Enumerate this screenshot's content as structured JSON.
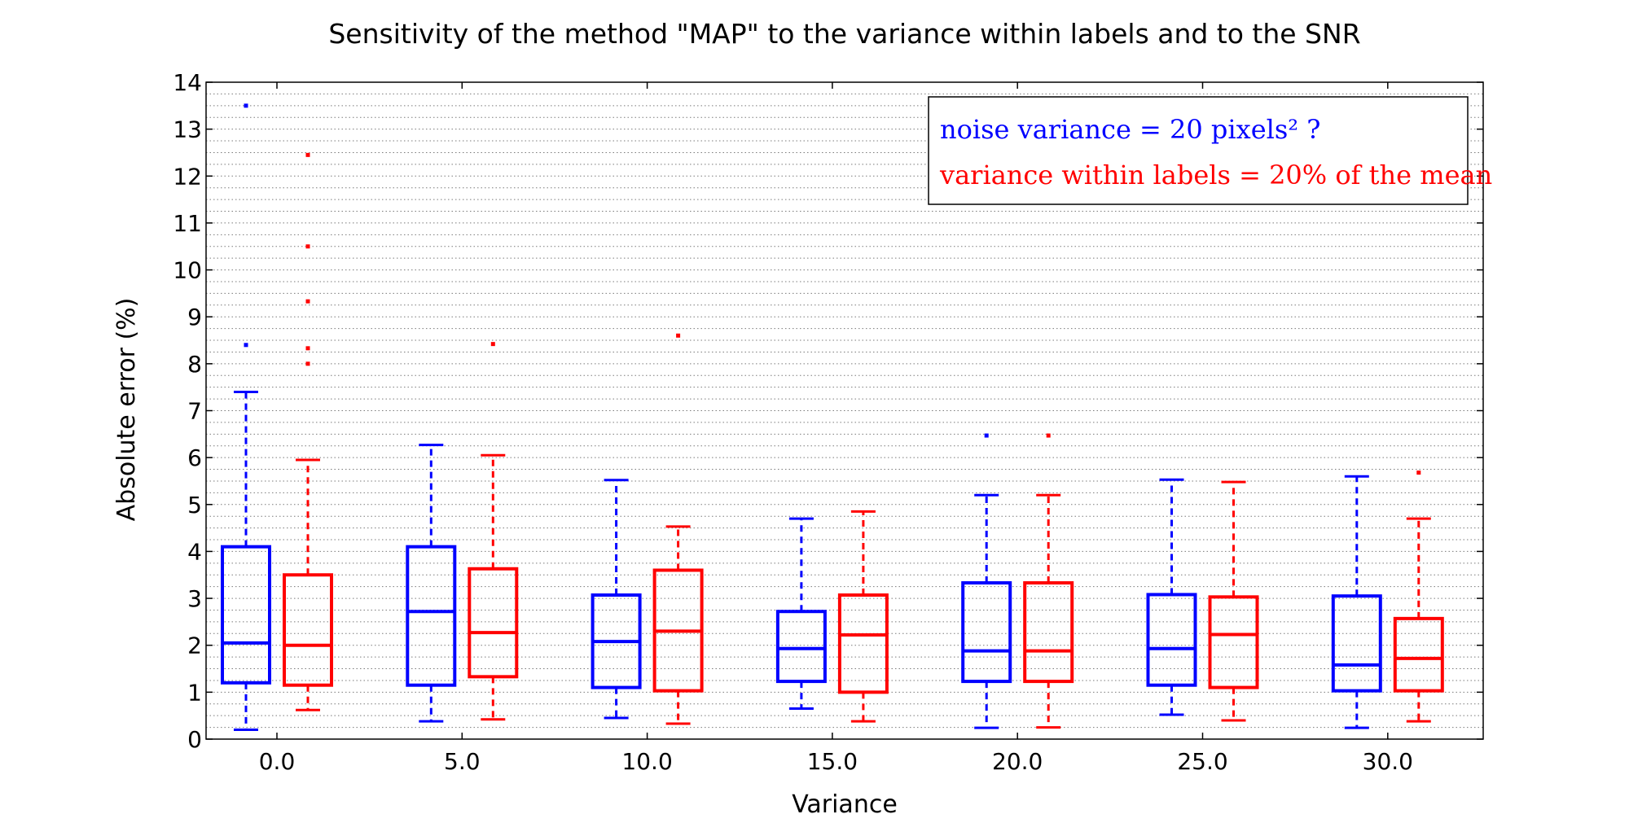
{
  "chart_data": {
    "type": "boxplot",
    "title": "Sensitivity of the method \"MAP\" to the variance within labels and to the SNR",
    "xlabel": "Variance",
    "ylabel": "Absolute error (%)",
    "ylim": [
      0,
      14
    ],
    "y_ticks": [
      "0",
      "1",
      "2",
      "3",
      "4",
      "5",
      "6",
      "7",
      "8",
      "9",
      "10",
      "11",
      "12",
      "13",
      "14"
    ],
    "grid": "horizontal-dotted",
    "categories": [
      "0.0",
      "5.0",
      "10.0",
      "15.0",
      "20.0",
      "25.0",
      "30.0"
    ],
    "legend": {
      "placement": "top-right",
      "entries": [
        {
          "text": "noise variance = 20 pixels² ?",
          "color": "#0000ff"
        },
        {
          "text": "variance within labels = 20% of the mean",
          "color": "#ff0000"
        }
      ]
    },
    "series": [
      {
        "color": "#0000ff",
        "boxes": [
          {
            "whislo": 0.2,
            "q1": 1.2,
            "med": 2.05,
            "q3": 4.1,
            "whishi": 7.4,
            "fliers": [
              8.4,
              13.5
            ]
          },
          {
            "whislo": 0.38,
            "q1": 1.15,
            "med": 2.72,
            "q3": 4.1,
            "whishi": 6.27,
            "fliers": []
          },
          {
            "whislo": 0.45,
            "q1": 1.1,
            "med": 2.08,
            "q3": 3.07,
            "whishi": 5.52,
            "fliers": []
          },
          {
            "whislo": 0.65,
            "q1": 1.23,
            "med": 1.93,
            "q3": 2.72,
            "whishi": 4.7,
            "fliers": []
          },
          {
            "whislo": 0.24,
            "q1": 1.23,
            "med": 1.88,
            "q3": 3.33,
            "whishi": 5.2,
            "fliers": [
              6.47
            ]
          },
          {
            "whislo": 0.52,
            "q1": 1.15,
            "med": 1.93,
            "q3": 3.08,
            "whishi": 5.53,
            "fliers": []
          },
          {
            "whislo": 0.24,
            "q1": 1.03,
            "med": 1.58,
            "q3": 3.05,
            "whishi": 5.6,
            "fliers": []
          }
        ]
      },
      {
        "color": "#ff0000",
        "boxes": [
          {
            "whislo": 0.62,
            "q1": 1.15,
            "med": 2.0,
            "q3": 3.5,
            "whishi": 5.95,
            "fliers": [
              8.0,
              8.33,
              9.33,
              10.5,
              12.45
            ]
          },
          {
            "whislo": 0.42,
            "q1": 1.33,
            "med": 2.27,
            "q3": 3.63,
            "whishi": 6.05,
            "fliers": [
              8.42
            ]
          },
          {
            "whislo": 0.33,
            "q1": 1.03,
            "med": 2.3,
            "q3": 3.6,
            "whishi": 4.53,
            "fliers": [
              8.6
            ]
          },
          {
            "whislo": 0.38,
            "q1": 1.0,
            "med": 2.22,
            "q3": 3.07,
            "whishi": 4.85,
            "fliers": []
          },
          {
            "whislo": 0.25,
            "q1": 1.23,
            "med": 1.88,
            "q3": 3.33,
            "whishi": 5.2,
            "fliers": [
              6.47
            ]
          },
          {
            "whislo": 0.4,
            "q1": 1.1,
            "med": 2.23,
            "q3": 3.03,
            "whishi": 5.48,
            "fliers": []
          },
          {
            "whislo": 0.38,
            "q1": 1.03,
            "med": 1.72,
            "q3": 2.57,
            "whishi": 4.7,
            "fliers": [
              5.68
            ]
          }
        ]
      }
    ]
  }
}
